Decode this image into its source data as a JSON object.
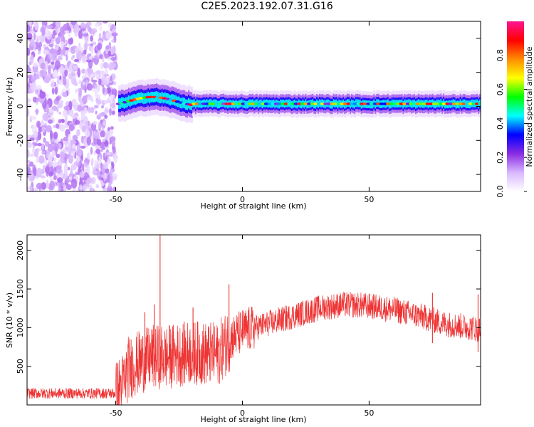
{
  "figure": {
    "title": "C2E5.2023.192.07.31.G16"
  },
  "chart_data": [
    {
      "type": "heatmap",
      "xlabel": "Height of straight line (km)",
      "ylabel": "Frequency (Hz)",
      "xlim": [
        -85,
        94
      ],
      "ylim": [
        -50,
        50
      ],
      "xticks": [
        -50,
        0,
        50
      ],
      "yticks": [
        -40,
        -20,
        0,
        20,
        40
      ],
      "grid": false,
      "colorbar": {
        "label": "Normalized spectral amplitude",
        "range": [
          0,
          1
        ],
        "ticks": [
          "0.0",
          "0.2",
          "0.4",
          "0.6",
          "0.8"
        ],
        "colormap": [
          "#ffffff",
          "#d9b8ff",
          "#8a2be2",
          "#0000ff",
          "#00ffff",
          "#00ff00",
          "#ffff00",
          "#ff8c00",
          "#ff0000",
          "#ff1493"
        ]
      },
      "regions": [
        {
          "x_range": [
            -85,
            -50
          ],
          "frequency_range": [
            -50,
            50
          ],
          "pattern": "scattered speckle",
          "amplitude_range": [
            0.0,
            0.1
          ]
        },
        {
          "x_range": [
            -49,
            94
          ],
          "frequency_center": 1.5,
          "frequency_halfwidth": 4,
          "pattern": "narrow band",
          "amplitude_range": [
            0.2,
            0.95
          ]
        }
      ]
    },
    {
      "type": "line",
      "xlabel": "Height of straight line (km)",
      "ylabel": "SNR (10 * v/v)",
      "xlim": [
        -85,
        94
      ],
      "ylim": [
        0,
        2200
      ],
      "xticks": [
        -50,
        0,
        50
      ],
      "yticks": [
        500,
        1000,
        1500,
        2000
      ],
      "grid": false,
      "color": "#ee3333",
      "envelope": [
        {
          "x": -85,
          "y": 150
        },
        {
          "x": -60,
          "y": 150
        },
        {
          "x": -50,
          "y": 150
        },
        {
          "x": -47,
          "y": 280
        },
        {
          "x": -45,
          "y": 480
        },
        {
          "x": -40,
          "y": 560
        },
        {
          "x": -35,
          "y": 620
        },
        {
          "x": -30,
          "y": 620
        },
        {
          "x": -20,
          "y": 680
        },
        {
          "x": -10,
          "y": 650
        },
        {
          "x": -5,
          "y": 850
        },
        {
          "x": 0,
          "y": 950
        },
        {
          "x": 10,
          "y": 1050
        },
        {
          "x": 20,
          "y": 1150
        },
        {
          "x": 30,
          "y": 1250
        },
        {
          "x": 40,
          "y": 1300
        },
        {
          "x": 50,
          "y": 1280
        },
        {
          "x": 60,
          "y": 1230
        },
        {
          "x": 70,
          "y": 1150
        },
        {
          "x": 80,
          "y": 1050
        },
        {
          "x": 90,
          "y": 1000
        },
        {
          "x": 94,
          "y": 980
        }
      ],
      "spikes": [
        {
          "x": -32.5,
          "y": 2200
        },
        {
          "x": -34.8,
          "y": 1300
        },
        {
          "x": -38.5,
          "y": 1200
        },
        {
          "x": -19.5,
          "y": 1260
        },
        {
          "x": -5.3,
          "y": 1560
        },
        {
          "x": 75,
          "y": 1450
        },
        {
          "x": 93,
          "y": 1430
        }
      ]
    }
  ]
}
